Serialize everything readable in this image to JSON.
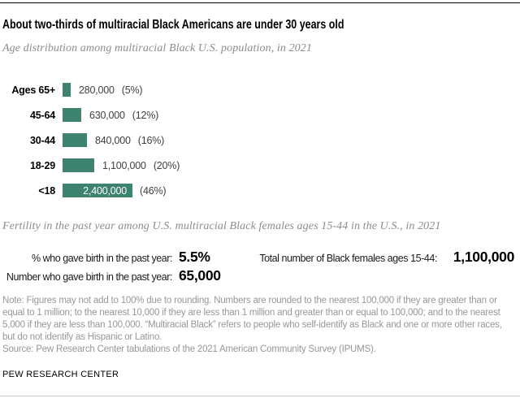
{
  "header": {
    "title": "About two-thirds of multiracial Black Americans are under 30 years old",
    "subtitle": "Age distribution among multiracial Black U.S. population, in 2021"
  },
  "chart_data": {
    "type": "bar",
    "orientation": "horizontal",
    "title": "Age distribution among multiracial Black U.S. population, in 2021",
    "categories": [
      "Ages 65+",
      "45-64",
      "30-44",
      "18-29",
      "<18"
    ],
    "values": [
      280000,
      630000,
      840000,
      1100000,
      2400000
    ],
    "value_labels": [
      "280,000",
      "630,000",
      "840,000",
      "1,100,000",
      "2,400,000"
    ],
    "percentages": [
      5,
      12,
      16,
      20,
      46
    ],
    "pct_labels": [
      "(5%)",
      "(12%)",
      "(16%)",
      "(20%)",
      "(46%)"
    ],
    "xlim": [
      0,
      2400000
    ],
    "grid": false,
    "legend": false,
    "bar_color": "#3E8370"
  },
  "fertility": {
    "subtitle": "Fertility in the past year among U.S. multiracial Black females ages 15-44 in the U.S., in 2021",
    "stats": [
      {
        "label": "% who gave birth in the past year:",
        "value": "5.5%"
      },
      {
        "label": "Number who gave birth in the past year:",
        "value": "65,000"
      },
      {
        "label": "Total number of Black females ages 15-44:",
        "value": "1,100,000"
      }
    ]
  },
  "note": "Note: Figures may not add to 100% due to rounding. Numbers are rounded to the nearest 100,000 if they are greater than or equal to 1 million; to the nearest 10,000 if they are less than 1 million and greater than or equal to 100,000; and to the nearest 5,000 if they are less than 100,000. “Multiracial Black” refers to people who self-identify as Black and one or more other races, but do not identify as Hispanic or Latino.",
  "source": "Source: Pew Research Center tabulations of the 2021 American Community Survey (IPUMS).",
  "footer": "PEW RESEARCH CENTER",
  "colors": {
    "bar_teal": "#3E8370",
    "subtitle_gray": "#8c8c8c",
    "note_gray": "#979797",
    "bottom_rule_gray": "#c9c9c9",
    "top_rule_black": "#000000"
  }
}
